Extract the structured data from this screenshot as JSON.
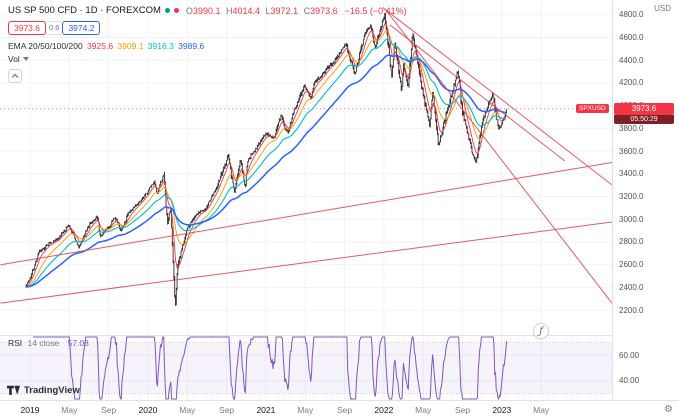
{
  "header": {
    "symbol_text": "US SP 500 CFD · 1D · FOREXCOM",
    "status_dots": [
      {
        "name": "green",
        "color": "#089981"
      },
      {
        "name": "red",
        "color": "#f23645"
      }
    ],
    "ohlc": {
      "o_label": "O",
      "o": "3990.1",
      "h_label": "H",
      "h": "4014.4",
      "l_label": "L",
      "l": "3972.1",
      "c_label": "C",
      "c": "3973.6",
      "change": "−16.5 (−0.41%)",
      "value_color": "#f23645"
    },
    "trade": {
      "sell": "3973.6",
      "spread": "0.6",
      "buy": "3974.2",
      "sell_color": "#f23645",
      "buy_color": "#2962ff"
    },
    "ema": {
      "label": "EMA 20/50/100/200",
      "values": [
        "3925.6",
        "3909.1",
        "3916.3",
        "3989.6"
      ],
      "colors": [
        "#f23645",
        "#ff9800",
        "#00bcd4",
        "#2962ff"
      ]
    },
    "vol": {
      "label": "Vol"
    }
  },
  "rsi_legend": {
    "title": "RSI",
    "params": "14 close",
    "value": "57.08",
    "value_color": "#7e57c2"
  },
  "price_axis": {
    "currency": "USD",
    "ticks": [
      {
        "label": "4800.0",
        "value": 4800
      },
      {
        "label": "4600.0",
        "value": 4600
      },
      {
        "label": "4400.0",
        "value": 4400
      },
      {
        "label": "4200.0",
        "value": 4200
      },
      {
        "label": "4000.0",
        "value": 4000
      },
      {
        "label": "3800.0",
        "value": 3800
      },
      {
        "label": "3600.0",
        "value": 3600
      },
      {
        "label": "3400.0",
        "value": 3400
      },
      {
        "label": "3200.0",
        "value": 3200
      },
      {
        "label": "3000.0",
        "value": 3000
      },
      {
        "label": "2800.0",
        "value": 2800
      },
      {
        "label": "2600.0",
        "value": 2600
      },
      {
        "label": "2400.0",
        "value": 2400
      },
      {
        "label": "2200.0",
        "value": 2200
      }
    ],
    "badge": {
      "tag": "SPXUSD",
      "price": "3973.6",
      "countdown": "05:50:29",
      "bg": "#f23645",
      "countdown_bg": "#7c1f26"
    }
  },
  "rsi_axis": {
    "ticks": [
      {
        "label": "60.00",
        "value": 60
      },
      {
        "label": "40.00",
        "value": 40
      }
    ]
  },
  "time_axis": {
    "ticks": [
      {
        "label": "2019",
        "m": 0,
        "major": true
      },
      {
        "label": "May",
        "m": 4,
        "major": false
      },
      {
        "label": "Sep",
        "m": 8,
        "major": false
      },
      {
        "label": "2020",
        "m": 12,
        "major": true
      },
      {
        "label": "May",
        "m": 16,
        "major": false
      },
      {
        "label": "Sep",
        "m": 20,
        "major": false
      },
      {
        "label": "2021",
        "m": 24,
        "major": true
      },
      {
        "label": "May",
        "m": 28,
        "major": false
      },
      {
        "label": "Sep",
        "m": 32,
        "major": false
      },
      {
        "label": "2022",
        "m": 36,
        "major": true
      },
      {
        "label": "May",
        "m": 40,
        "major": false
      },
      {
        "label": "Sep",
        "m": 44,
        "major": false
      },
      {
        "label": "2023",
        "m": 48,
        "major": true
      },
      {
        "label": "May",
        "m": 52,
        "major": false
      }
    ]
  },
  "footer": {
    "brand": "TradingView"
  },
  "overlay": {
    "fx_badge": "ƒ"
  },
  "chart_data": {
    "type": "candlestick",
    "symbol": "SPXUSD",
    "interval": "1D",
    "title": "US SP 500 CFD 1D FOREXCOM with EMA 20/50/100/200, trendline channel and RSI(14) pane",
    "visible_price_range": [
      1990,
      4930
    ],
    "price_gridlines": [
      2200,
      2400,
      2600,
      2800,
      3000,
      3200,
      3400,
      3600,
      3800,
      4000,
      4200,
      4400,
      4600,
      4800
    ],
    "time_start": "2019-01",
    "current_price": 3973.6,
    "monthly_close_anchors": [
      [
        -0.4,
        2416
      ],
      [
        0,
        2480
      ],
      [
        0.9,
        2704
      ],
      [
        1.9,
        2784
      ],
      [
        2.9,
        2834
      ],
      [
        3.95,
        2946
      ],
      [
        4.95,
        2752
      ],
      [
        5.95,
        2942
      ],
      [
        6.85,
        3026
      ],
      [
        7.15,
        2847
      ],
      [
        7.95,
        2926
      ],
      [
        8.6,
        3016
      ],
      [
        8.95,
        2977
      ],
      [
        9.25,
        2890
      ],
      [
        9.95,
        3038
      ],
      [
        10.95,
        3141
      ],
      [
        11.95,
        3231
      ],
      [
        12.6,
        3330
      ],
      [
        12.95,
        3226
      ],
      [
        13.6,
        3386
      ],
      [
        14.0,
        2954
      ],
      [
        14.3,
        3130
      ],
      [
        14.78,
        2210
      ],
      [
        15.0,
        2585
      ],
      [
        15.95,
        2912
      ],
      [
        16.95,
        3044
      ],
      [
        17.95,
        3100
      ],
      [
        18.95,
        3271
      ],
      [
        19.95,
        3500
      ],
      [
        20.15,
        3580
      ],
      [
        20.8,
        3237
      ],
      [
        21.4,
        3534
      ],
      [
        21.9,
        3270
      ],
      [
        22.1,
        3510
      ],
      [
        22.95,
        3622
      ],
      [
        23.95,
        3756
      ],
      [
        24.85,
        3714
      ],
      [
        25.55,
        3930
      ],
      [
        25.9,
        3811
      ],
      [
        26.25,
        3768
      ],
      [
        26.95,
        3973
      ],
      [
        27.9,
        4181
      ],
      [
        28.6,
        4060
      ],
      [
        28.95,
        4204
      ],
      [
        29.95,
        4298
      ],
      [
        30.95,
        4395
      ],
      [
        31.95,
        4523
      ],
      [
        32.15,
        4537
      ],
      [
        32.95,
        4308
      ],
      [
        33.1,
        4279
      ],
      [
        33.95,
        4605
      ],
      [
        34.7,
        4720
      ],
      [
        34.95,
        4567
      ],
      [
        35.1,
        4513
      ],
      [
        35.95,
        4766
      ],
      [
        36.1,
        4812
      ],
      [
        36.8,
        4250
      ],
      [
        37.1,
        4570
      ],
      [
        37.8,
        4120
      ],
      [
        38.0,
        4374
      ],
      [
        38.45,
        4160
      ],
      [
        38.95,
        4630
      ],
      [
        39.9,
        4131
      ],
      [
        40.65,
        3830
      ],
      [
        40.95,
        4132
      ],
      [
        41.55,
        3640
      ],
      [
        41.95,
        3785
      ],
      [
        43.0,
        4130
      ],
      [
        43.5,
        4315
      ],
      [
        44.0,
        3955
      ],
      [
        45.0,
        3586
      ],
      [
        45.4,
        3495
      ],
      [
        46.0,
        3872
      ],
      [
        47.05,
        4100
      ],
      [
        47.65,
        3800
      ],
      [
        48.0,
        3840
      ],
      [
        48.55,
        3973.6
      ]
    ],
    "trendlines": [
      {
        "name": "channel-upper",
        "m1": 35.9,
        "p1": 4862,
        "m2": 59.2,
        "p2": 3302
      },
      {
        "name": "channel-inner",
        "m1": 36.6,
        "p1": 4712,
        "m2": 54.4,
        "p2": 3513
      },
      {
        "name": "steep-resistance",
        "m1": 36.2,
        "p1": 4844,
        "m2": 59.2,
        "p2": 2262
      },
      {
        "name": "support-low",
        "m1": -3.0,
        "p1": 2262,
        "m2": 59.2,
        "p2": 2976
      },
      {
        "name": "support-mid",
        "m1": -3.0,
        "p1": 2600,
        "m2": 59.2,
        "p2": 3500
      }
    ],
    "trendline_color": "#e03e4d",
    "candle_colors": {
      "up": "#233a33",
      "down": "#4a2025"
    },
    "ema": {
      "periods": [
        20,
        50,
        100,
        200
      ],
      "colors": [
        "#f23645",
        "#ff9800",
        "#00bcd4",
        "#2962ff"
      ],
      "current": [
        3925.6,
        3909.1,
        3916.3,
        3989.6
      ]
    },
    "rsi": {
      "period": 14,
      "current": 57.08,
      "visible_range": [
        25,
        75
      ],
      "band": [
        30,
        70
      ],
      "color": "#7e57c2",
      "band_fill": "rgba(126,87,194,0.07)"
    }
  }
}
